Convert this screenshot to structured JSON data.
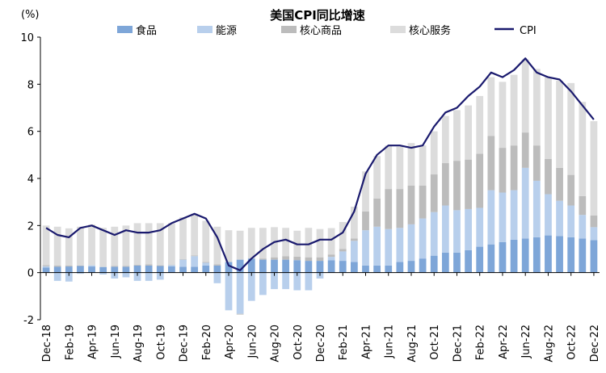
{
  "chart_data": {
    "type": "bar",
    "title": "美国CPI同比增速",
    "unit_label": "(%)",
    "ylim": [
      -2,
      10
    ],
    "yticks": [
      -2,
      0,
      2,
      4,
      6,
      8,
      10
    ],
    "x": [
      "Dec-18",
      "Jan-19",
      "Feb-19",
      "Mar-19",
      "Apr-19",
      "May-19",
      "Jun-19",
      "Jul-19",
      "Aug-19",
      "Sep-19",
      "Oct-19",
      "Nov-19",
      "Dec-19",
      "Jan-20",
      "Feb-20",
      "Mar-20",
      "Apr-20",
      "May-20",
      "Jun-20",
      "Jul-20",
      "Aug-20",
      "Sep-20",
      "Oct-20",
      "Nov-20",
      "Dec-20",
      "Jan-21",
      "Feb-21",
      "Mar-21",
      "Apr-21",
      "May-21",
      "Jun-21",
      "Jul-21",
      "Aug-21",
      "Sep-21",
      "Oct-21",
      "Nov-21",
      "Dec-21",
      "Jan-22",
      "Feb-22",
      "Mar-22",
      "Apr-22",
      "May-22",
      "Jun-22",
      "Jul-22",
      "Aug-22",
      "Sep-22",
      "Oct-22",
      "Nov-22",
      "Dec-22"
    ],
    "xtick_labels": [
      "Dec-18",
      "Feb-19",
      "Apr-19",
      "Jun-19",
      "Aug-19",
      "Oct-19",
      "Dec-19",
      "Feb-20",
      "Apr-20",
      "Jun-20",
      "Aug-20",
      "Oct-20",
      "Dec-20",
      "Feb-21",
      "Apr-21",
      "Jun-21",
      "Aug-21",
      "Oct-21",
      "Dec-21",
      "Feb-22",
      "Apr-22",
      "Jun-22",
      "Aug-22",
      "Oct-22",
      "Dec-22"
    ],
    "stacked": true,
    "grid": false,
    "legend_position": "top",
    "series": [
      {
        "name": "食品",
        "type": "bar",
        "color": "#7ea6d8",
        "values": [
          0.22,
          0.25,
          0.26,
          0.28,
          0.26,
          0.24,
          0.25,
          0.25,
          0.3,
          0.3,
          0.28,
          0.27,
          0.25,
          0.25,
          0.3,
          0.3,
          0.45,
          0.55,
          0.6,
          0.55,
          0.55,
          0.55,
          0.53,
          0.5,
          0.5,
          0.52,
          0.5,
          0.45,
          0.3,
          0.3,
          0.3,
          0.45,
          0.5,
          0.6,
          0.72,
          0.85,
          0.85,
          0.95,
          1.1,
          1.2,
          1.3,
          1.4,
          1.45,
          1.5,
          1.58,
          1.55,
          1.5,
          1.45,
          1.38
        ]
      },
      {
        "name": "能源",
        "type": "bar",
        "color": "#b8cfec",
        "values": [
          0.05,
          -0.35,
          -0.38,
          -0.05,
          0.05,
          -0.08,
          -0.25,
          -0.2,
          -0.35,
          -0.35,
          -0.3,
          0.05,
          0.3,
          0.45,
          0.12,
          -0.45,
          -1.6,
          -1.75,
          -1.2,
          -0.95,
          -0.7,
          -0.7,
          -0.75,
          -0.75,
          -0.25,
          0.15,
          0.4,
          0.9,
          1.5,
          1.65,
          1.55,
          1.45,
          1.55,
          1.7,
          1.85,
          2.0,
          1.8,
          1.75,
          1.65,
          2.3,
          2.1,
          2.1,
          3.0,
          2.4,
          1.75,
          1.5,
          1.35,
          1.0,
          0.55
        ]
      },
      {
        "name": "核心商品",
        "type": "bar",
        "color": "#bcbcbc",
        "values": [
          0.05,
          0.05,
          0.04,
          0.02,
          0.0,
          0.0,
          0.03,
          0.03,
          0.03,
          0.05,
          0.03,
          0.02,
          0.02,
          0.03,
          0.03,
          0.05,
          0.0,
          -0.03,
          0.0,
          0.05,
          0.1,
          0.15,
          0.15,
          0.15,
          0.15,
          0.1,
          0.1,
          0.1,
          0.8,
          1.2,
          1.7,
          1.65,
          1.65,
          1.4,
          1.6,
          1.8,
          2.1,
          2.1,
          2.3,
          2.3,
          1.9,
          1.9,
          1.5,
          1.5,
          1.5,
          1.4,
          1.3,
          0.8,
          0.5
        ]
      },
      {
        "name": "核心服务",
        "type": "bar",
        "color": "#dcdcdc",
        "values": [
          1.68,
          1.65,
          1.58,
          1.65,
          1.73,
          1.66,
          1.67,
          1.72,
          1.77,
          1.75,
          1.79,
          1.76,
          1.78,
          1.77,
          1.75,
          1.6,
          1.35,
          1.23,
          1.3,
          1.3,
          1.28,
          1.2,
          1.1,
          1.25,
          1.2,
          1.12,
          1.15,
          1.35,
          1.7,
          1.8,
          1.85,
          1.8,
          1.8,
          1.7,
          1.83,
          2.0,
          2.15,
          2.3,
          2.45,
          2.5,
          2.8,
          3.0,
          3.1,
          3.25,
          3.47,
          3.7,
          3.9,
          4.0,
          4.0
        ]
      },
      {
        "name": "CPI",
        "type": "line",
        "color": "#1a1a6e",
        "values": [
          1.9,
          1.6,
          1.5,
          1.9,
          2.0,
          1.8,
          1.6,
          1.8,
          1.7,
          1.7,
          1.8,
          2.1,
          2.3,
          2.5,
          2.3,
          1.5,
          0.3,
          0.1,
          0.6,
          1.0,
          1.3,
          1.4,
          1.2,
          1.2,
          1.4,
          1.4,
          1.7,
          2.6,
          4.2,
          5.0,
          5.4,
          5.4,
          5.3,
          5.4,
          6.2,
          6.8,
          7.0,
          7.5,
          7.9,
          8.5,
          8.3,
          8.6,
          9.1,
          8.5,
          8.3,
          8.2,
          7.7,
          7.1,
          6.5
        ]
      }
    ]
  }
}
